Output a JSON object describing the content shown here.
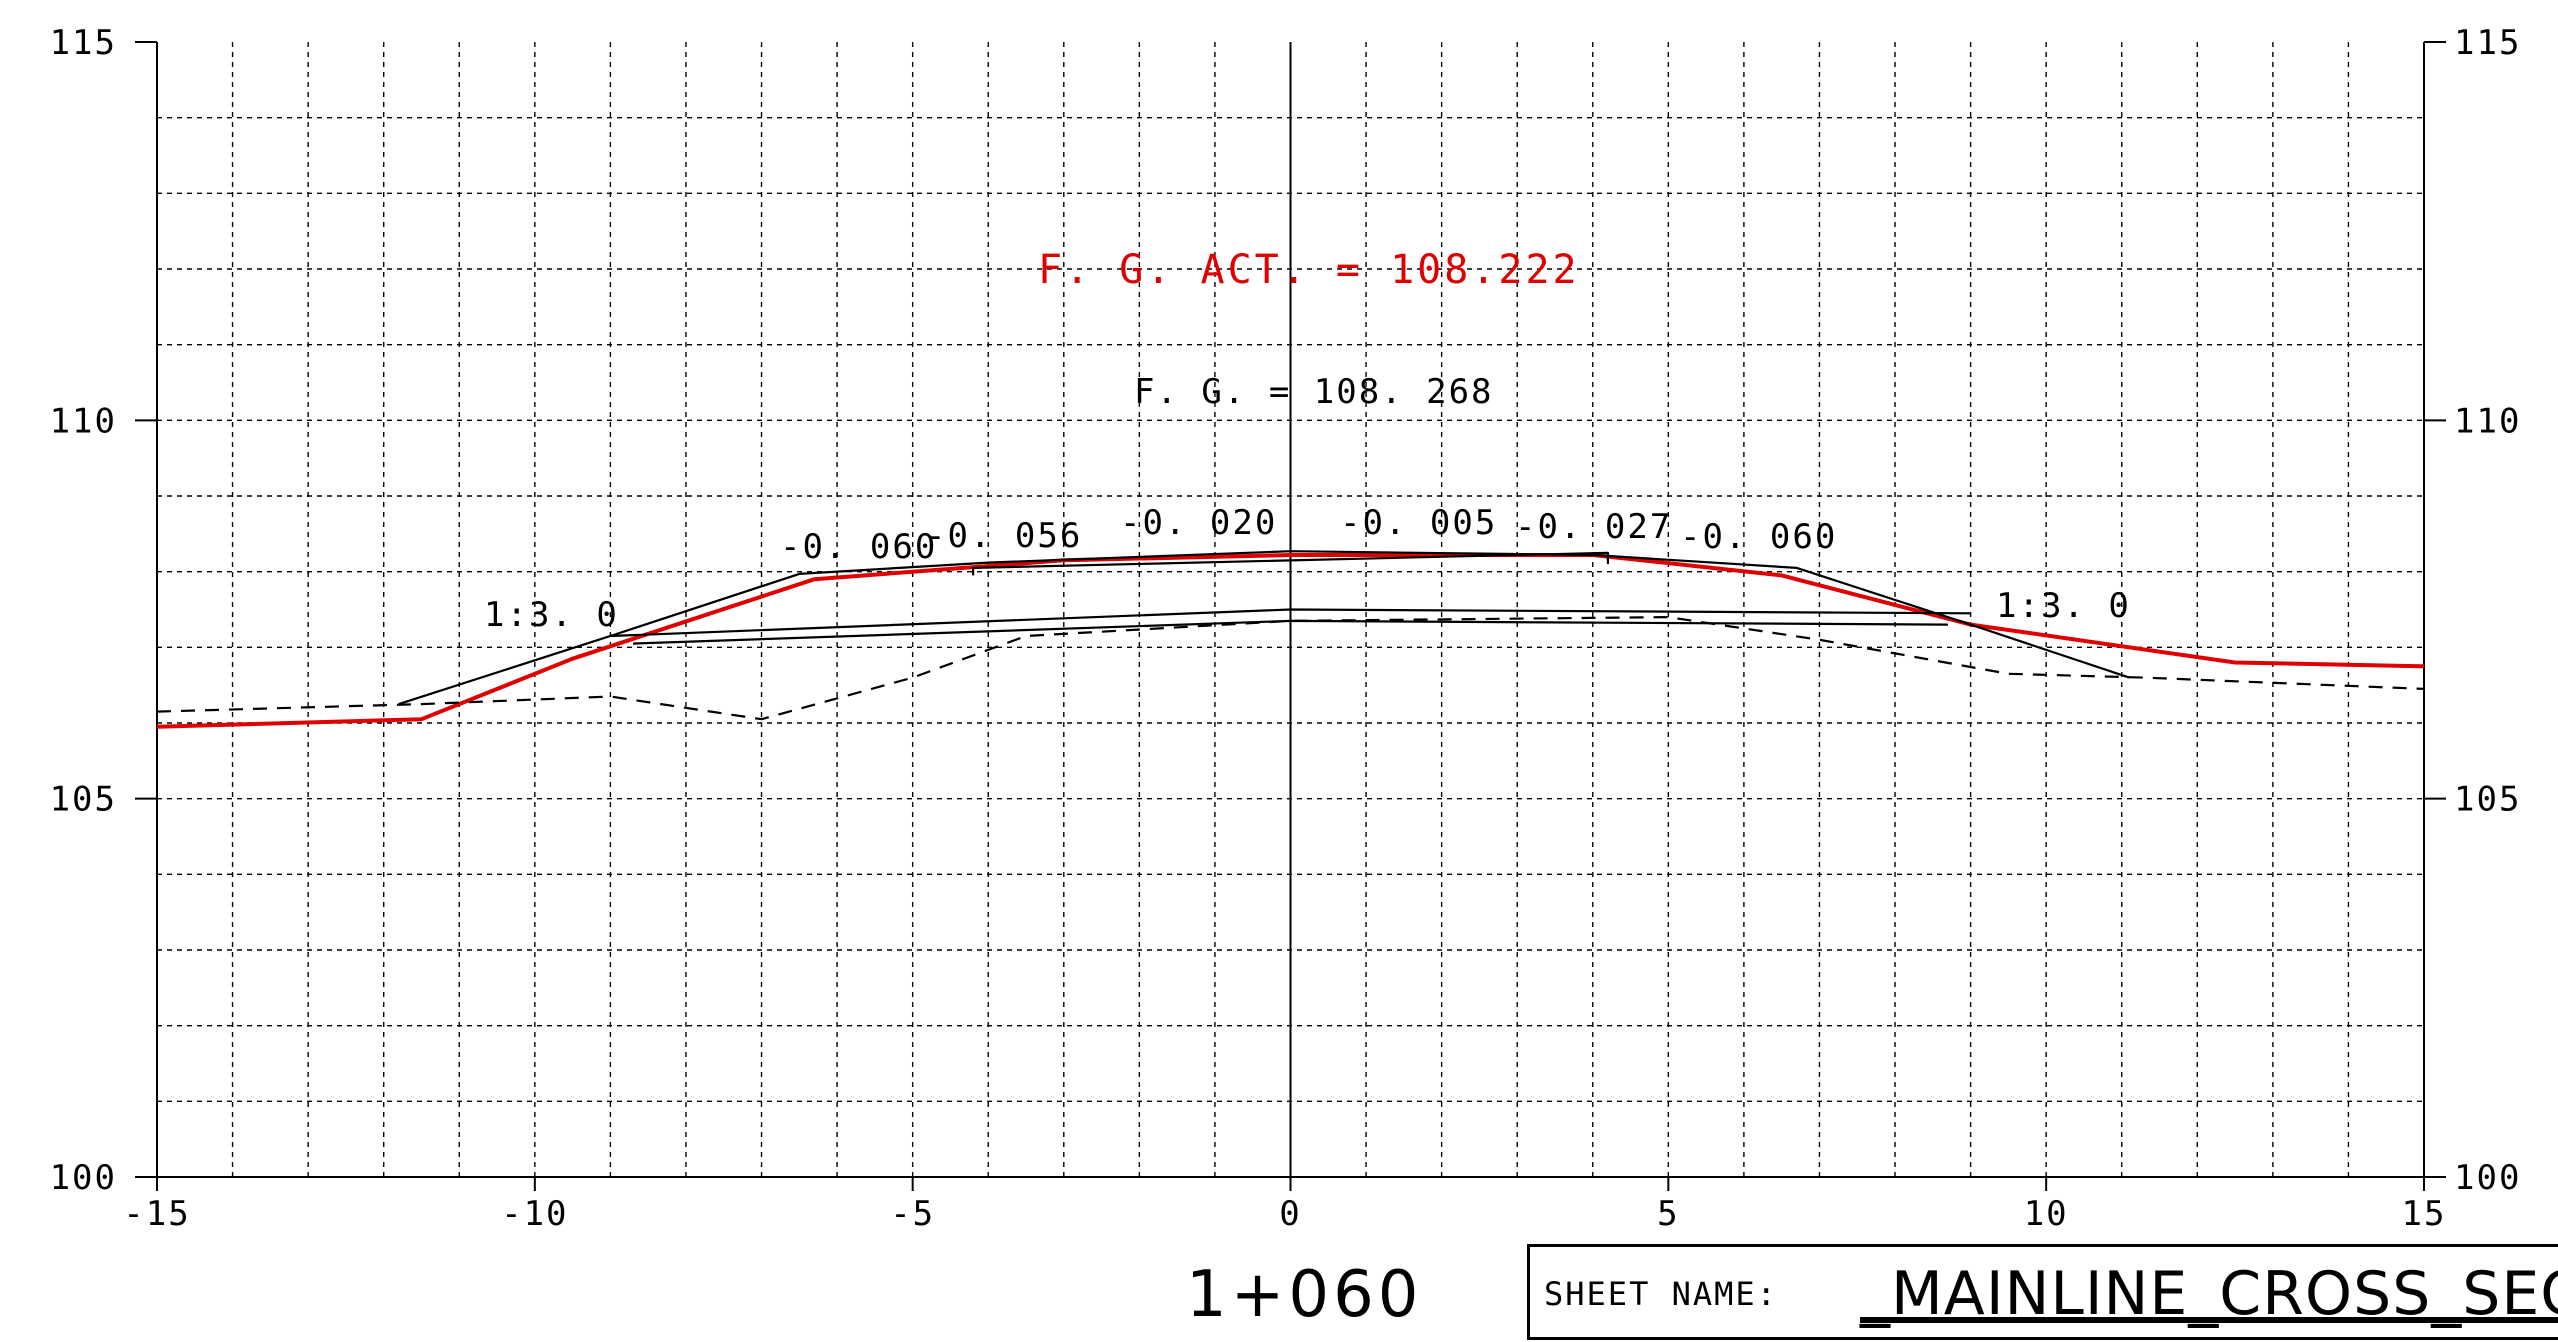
{
  "chart_data": {
    "type": "line",
    "xlim": [
      -15,
      15
    ],
    "ylim": [
      100,
      115
    ],
    "x_ticks": [
      "-15",
      "-10",
      "-5",
      "0",
      "5",
      "10",
      "15"
    ],
    "y_ticks_left": [
      "100",
      "105",
      "110",
      "115"
    ],
    "y_ticks_right": [
      "100",
      "105",
      "110",
      "115"
    ],
    "grid": "dashed, 1 unit",
    "series": [
      {
        "color": "#e00000",
        "style": "solid",
        "x": [
          -15,
          -11.5,
          -9.5,
          -6.3,
          -3,
          0,
          4,
          6.5,
          9,
          12.5,
          15
        ],
        "y": [
          105.95,
          106.05,
          106.85,
          107.9,
          108.15,
          108.22,
          108.22,
          107.95,
          107.3,
          106.8,
          106.75
        ]
      },
      {
        "color": "#000000",
        "style": "solid",
        "x": [
          -11.8,
          -9,
          -6.5,
          -4,
          0,
          4,
          6.7,
          9,
          11.1
        ],
        "y": [
          106.25,
          107.15,
          107.97,
          108.12,
          108.27,
          108.22,
          108.05,
          107.3,
          106.6
        ]
      },
      {
        "color": "#000000",
        "style": "solid",
        "x": [
          -9,
          0,
          9
        ],
        "y": [
          107.15,
          107.5,
          107.45
        ]
      },
      {
        "color": "#000000",
        "style": "solid",
        "x": [
          -8.7,
          0,
          8.7
        ],
        "y": [
          107.05,
          107.35,
          107.3
        ]
      },
      {
        "color": "#000000",
        "style": "solid",
        "x": [
          -4.2,
          -4.2,
          4.2,
          4.2
        ],
        "y": [
          107.95,
          108.05,
          108.25,
          108.1
        ]
      },
      {
        "color": "#000000",
        "style": "dashed",
        "x": [
          -15,
          -11.5,
          -9,
          -7,
          -5,
          -3.5,
          0,
          5,
          7,
          9.5,
          11.3,
          15
        ],
        "y": [
          106.15,
          106.25,
          106.35,
          106.05,
          106.6,
          107.15,
          107.35,
          107.4,
          107.1,
          106.65,
          106.6,
          106.45
        ]
      }
    ],
    "annotations": {
      "fg_act": "F. G. ACT.  =  108.222",
      "fg": "F. G.  =  108. 268",
      "slope_l1": "-0. 060",
      "slope_l2": "-0. 056",
      "slope_l3": "-0. 020",
      "slope_r1": "-0. 005",
      "slope_r2": "-0. 027",
      "slope_r3": "-0. 060",
      "ratio_left": "1:3. 0",
      "ratio_right": "1:3. 0"
    },
    "station": "1+060"
  },
  "title_block": {
    "label": "SHEET NAME:",
    "value": "_MAINLINE_CROSS_SECTIO"
  }
}
